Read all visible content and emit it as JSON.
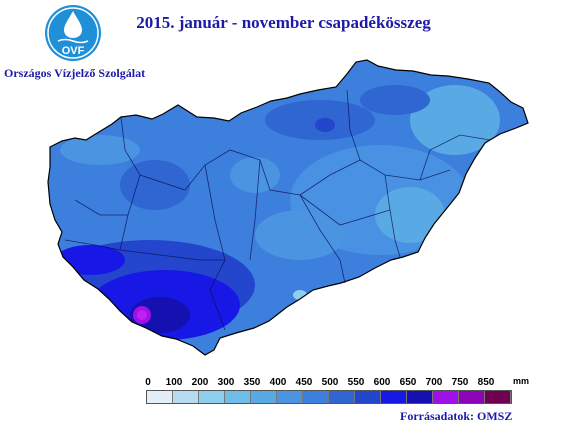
{
  "title": "2015. január - november csapadékösszeg",
  "logo": {
    "text": "OVF",
    "icon": "water-drop-logo",
    "color": "#1f8fd8"
  },
  "organization": "Országos Vízjelző Szolgálat",
  "source": "Forrásadatok: OMSZ",
  "legend": {
    "unit": "mm",
    "ticks": [
      "0",
      "100",
      "200",
      "300",
      "350",
      "400",
      "450",
      "500",
      "550",
      "600",
      "650",
      "700",
      "750",
      "850"
    ],
    "colors": [
      "#e4eef6",
      "#b6dcf2",
      "#8fcfee",
      "#6ebde9",
      "#58a9e4",
      "#4a94e2",
      "#3c7fdc",
      "#2f66d2",
      "#2346cc",
      "#1818e6",
      "#1510b0",
      "#a010e8",
      "#8c05b8",
      "#700050"
    ]
  }
}
